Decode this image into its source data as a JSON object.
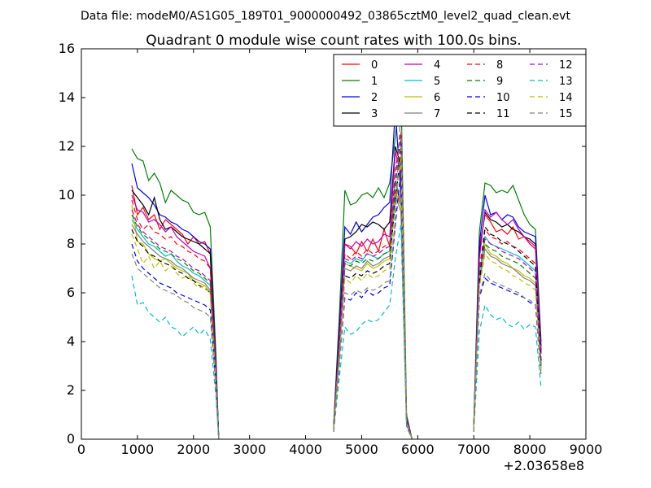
{
  "figure": {
    "suptitle": "Data file: modeM0/AS1G05_189T01_9000000492_03865cztM0_level2_quad_clean.evt",
    "title": "Quadrant 0 module wise count rates with 100.0s bins.",
    "x_offset_label": "+2.03658e8"
  },
  "chart_data": {
    "type": "line",
    "title": "Quadrant 0 module wise count rates with 100.0s bins.",
    "xlabel": "",
    "ylabel": "",
    "x_offset": "+2.03658e8",
    "xlim": [
      0,
      9000
    ],
    "ylim": [
      0,
      16
    ],
    "xticks": [
      0,
      1000,
      2000,
      3000,
      4000,
      5000,
      6000,
      7000,
      8000,
      9000
    ],
    "yticks": [
      0,
      2,
      4,
      6,
      8,
      10,
      12,
      14,
      16
    ],
    "grid": false,
    "legend": {
      "placement": "top-right",
      "columns": 4
    },
    "segments": [
      {
        "x": [
          900,
          1000,
          1100,
          1200,
          1300,
          1400,
          1500,
          1600,
          1700,
          1800,
          1900,
          2000,
          2100,
          2200,
          2300,
          2400,
          2450
        ]
      },
      {
        "x": [
          4500,
          4600,
          4700,
          4800,
          4900,
          5000,
          5100,
          5200,
          5300,
          5400,
          5500,
          5600,
          5700,
          5800,
          5900
        ]
      },
      {
        "x": [
          7000,
          7100,
          7200,
          7300,
          7400,
          7500,
          7600,
          7700,
          7800,
          7900,
          8000,
          8100,
          8200
        ]
      }
    ],
    "series": [
      {
        "name": "0",
        "color": "#ff0000",
        "dash": "solid",
        "segments": [
          [
            10.4,
            9.2,
            9.5,
            9.0,
            9.2,
            8.6,
            9.0,
            8.8,
            8.6,
            8.4,
            8.0,
            8.3,
            8.0,
            8.1,
            7.6,
            3.0,
            0
          ],
          [
            0.5,
            4.0,
            8.0,
            7.9,
            7.6,
            8.1,
            7.7,
            8.2,
            7.7,
            8.6,
            7.9,
            10.6,
            9.5,
            0.8,
            0
          ],
          [
            0.5,
            7.8,
            9.2,
            8.9,
            8.5,
            8.6,
            8.4,
            8.7,
            8.2,
            8.3,
            8.0,
            7.8,
            3.5
          ]
        ]
      },
      {
        "name": "1",
        "color": "#008000",
        "dash": "solid",
        "segments": [
          [
            11.9,
            11.5,
            11.4,
            10.6,
            10.9,
            10.5,
            9.7,
            10.2,
            10.0,
            9.8,
            9.7,
            9.3,
            9.2,
            9.3,
            8.7,
            3.5,
            0
          ],
          [
            0.6,
            5.0,
            10.2,
            9.6,
            9.7,
            10.0,
            10.1,
            9.9,
            10.3,
            9.9,
            10.5,
            12.4,
            14.6,
            1.0,
            0
          ],
          [
            0.6,
            8.5,
            10.5,
            10.4,
            10.1,
            10.2,
            10.1,
            10.4,
            9.8,
            9.2,
            8.8,
            8.6,
            4.0
          ]
        ]
      },
      {
        "name": "2",
        "color": "#0000ff",
        "dash": "solid",
        "segments": [
          [
            11.3,
            10.3,
            10.1,
            9.9,
            9.6,
            9.2,
            9.1,
            8.9,
            8.8,
            8.6,
            8.5,
            8.3,
            8.1,
            8.0,
            7.8,
            3.2,
            0
          ],
          [
            0.5,
            4.5,
            8.7,
            8.4,
            8.9,
            8.5,
            8.8,
            9.1,
            9.2,
            9.5,
            9.7,
            13.5,
            10.0,
            0.9,
            0
          ],
          [
            0.5,
            8.0,
            10.0,
            9.2,
            9.3,
            9.0,
            9.2,
            9.1,
            8.7,
            8.5,
            8.4,
            8.3,
            3.8
          ]
        ]
      },
      {
        "name": "3",
        "color": "#000000",
        "dash": "solid",
        "segments": [
          [
            10.2,
            9.9,
            9.6,
            9.2,
            9.9,
            9.0,
            8.6,
            8.7,
            8.5,
            8.3,
            8.2,
            8.1,
            8.0,
            7.8,
            7.6,
            3.0,
            0
          ],
          [
            0.5,
            4.2,
            8.2,
            8.3,
            8.5,
            8.8,
            8.7,
            8.9,
            8.8,
            8.6,
            8.9,
            12.0,
            11.2,
            0.8,
            0
          ],
          [
            0.5,
            7.6,
            9.3,
            9.0,
            8.9,
            8.7,
            8.8,
            8.6,
            8.5,
            8.3,
            8.2,
            8.0,
            3.6
          ]
        ]
      },
      {
        "name": "4",
        "color": "#bf00bf",
        "dash": "solid",
        "segments": [
          [
            10.0,
            9.4,
            9.3,
            8.9,
            9.0,
            8.8,
            8.5,
            8.7,
            8.3,
            8.1,
            7.9,
            7.7,
            7.6,
            7.5,
            7.0,
            2.9,
            0
          ],
          [
            0.5,
            4.0,
            8.0,
            7.8,
            8.1,
            7.9,
            8.2,
            8.0,
            8.1,
            8.4,
            8.3,
            11.8,
            10.8,
            0.8,
            0
          ],
          [
            0.5,
            7.4,
            9.4,
            9.1,
            9.3,
            9.0,
            8.8,
            9.0,
            8.6,
            8.3,
            8.1,
            7.9,
            3.5
          ]
        ]
      },
      {
        "name": "5",
        "color": "#00bfbf",
        "dash": "solid",
        "segments": [
          [
            9.0,
            8.6,
            8.3,
            8.0,
            7.9,
            7.7,
            7.5,
            7.6,
            7.3,
            7.1,
            7.0,
            6.8,
            6.7,
            6.5,
            6.3,
            2.6,
            0
          ],
          [
            0.4,
            3.6,
            7.3,
            7.2,
            7.4,
            7.3,
            7.6,
            7.5,
            7.4,
            7.6,
            7.7,
            10.6,
            9.8,
            0.7,
            0
          ],
          [
            0.4,
            6.8,
            8.3,
            8.0,
            7.9,
            7.8,
            7.7,
            7.6,
            7.5,
            7.3,
            7.1,
            6.9,
            3.1
          ]
        ]
      },
      {
        "name": "6",
        "color": "#bfbf00",
        "dash": "solid",
        "segments": [
          [
            9.6,
            8.1,
            8.0,
            7.6,
            7.4,
            7.3,
            7.4,
            7.2,
            7.0,
            6.9,
            6.8,
            6.5,
            6.4,
            6.3,
            6.0,
            2.5,
            0
          ],
          [
            0.4,
            3.5,
            7.2,
            7.1,
            7.0,
            6.9,
            7.2,
            7.0,
            7.1,
            7.3,
            7.4,
            10.2,
            9.5,
            0.7,
            0
          ],
          [
            0.4,
            6.5,
            8.0,
            7.6,
            7.5,
            7.3,
            7.2,
            7.0,
            6.9,
            6.7,
            6.6,
            6.4,
            3.0
          ]
        ]
      },
      {
        "name": "7",
        "color": "#808080",
        "dash": "solid",
        "segments": [
          [
            8.8,
            8.4,
            8.1,
            7.9,
            7.7,
            7.5,
            7.4,
            7.3,
            7.1,
            7.0,
            6.8,
            6.6,
            6.5,
            6.4,
            6.1,
            2.5,
            0
          ],
          [
            0.4,
            3.4,
            7.0,
            6.9,
            7.1,
            7.0,
            7.3,
            7.1,
            7.2,
            7.4,
            7.5,
            10.0,
            9.3,
            0.6,
            0
          ],
          [
            0.4,
            6.4,
            7.8,
            7.5,
            7.4,
            7.2,
            7.1,
            7.0,
            6.8,
            6.6,
            6.5,
            6.3,
            2.9
          ]
        ]
      },
      {
        "name": "8",
        "color": "#ff0000",
        "dash": "dashed",
        "segments": [
          [
            9.8,
            9.0,
            8.6,
            8.8,
            8.5,
            8.4,
            8.2,
            8.3,
            8.0,
            7.9,
            7.7,
            7.6,
            7.4,
            7.3,
            7.0,
            2.8,
            0
          ],
          [
            0.4,
            3.8,
            7.6,
            7.4,
            7.7,
            7.5,
            7.8,
            7.6,
            7.7,
            7.9,
            8.0,
            11.0,
            12.6,
            0.8,
            0
          ],
          [
            0.4,
            7.0,
            8.6,
            8.3,
            8.2,
            8.0,
            8.1,
            7.9,
            7.8,
            7.6,
            7.4,
            7.2,
            3.2
          ]
        ]
      },
      {
        "name": "9",
        "color": "#008000",
        "dash": "dashed",
        "segments": [
          [
            9.2,
            8.7,
            8.4,
            8.2,
            8.0,
            7.8,
            7.7,
            7.6,
            7.4,
            7.3,
            7.1,
            6.9,
            6.8,
            6.6,
            6.4,
            2.6,
            0
          ],
          [
            0.4,
            3.6,
            7.2,
            7.1,
            7.3,
            7.2,
            7.4,
            7.3,
            7.4,
            7.6,
            7.7,
            10.4,
            12.2,
            0.7,
            0
          ],
          [
            0.4,
            6.8,
            8.0,
            7.8,
            7.7,
            7.5,
            7.4,
            7.3,
            7.2,
            7.0,
            6.8,
            6.6,
            3.0
          ]
        ]
      },
      {
        "name": "10",
        "color": "#0000ff",
        "dash": "dashed",
        "segments": [
          [
            8.0,
            7.3,
            7.0,
            6.8,
            6.6,
            6.4,
            6.3,
            6.2,
            6.0,
            5.9,
            5.8,
            5.7,
            5.6,
            5.5,
            5.3,
            2.2,
            0
          ],
          [
            0.3,
            3.0,
            5.8,
            5.7,
            6.0,
            5.8,
            6.1,
            5.9,
            6.0,
            6.2,
            6.3,
            8.8,
            11.0,
            0.6,
            0
          ],
          [
            0.3,
            5.8,
            6.6,
            6.4,
            6.3,
            6.2,
            6.1,
            6.0,
            5.9,
            5.8,
            5.6,
            5.5,
            2.6
          ]
        ]
      },
      {
        "name": "11",
        "color": "#000000",
        "dash": "dashed",
        "segments": [
          [
            8.6,
            8.1,
            7.9,
            7.6,
            7.5,
            7.3,
            7.2,
            7.1,
            6.9,
            6.8,
            6.6,
            6.5,
            6.3,
            6.2,
            6.0,
            2.4,
            0
          ],
          [
            0.4,
            3.3,
            6.7,
            6.6,
            6.8,
            6.7,
            6.9,
            6.8,
            6.9,
            7.1,
            7.2,
            9.8,
            11.8,
            0.7,
            0
          ],
          [
            0.4,
            6.4,
            8.7,
            8.4,
            8.3,
            8.1,
            8.0,
            7.9,
            7.7,
            7.5,
            7.3,
            7.1,
            3.2
          ]
        ]
      },
      {
        "name": "12",
        "color": "#bf00bf",
        "dash": "dashed",
        "segments": [
          [
            9.4,
            8.8,
            8.5,
            8.3,
            8.1,
            7.9,
            7.8,
            7.7,
            7.5,
            7.4,
            7.2,
            7.0,
            6.9,
            6.7,
            6.5,
            2.7,
            0
          ],
          [
            0.4,
            3.7,
            7.4,
            7.3,
            7.5,
            7.4,
            7.6,
            7.5,
            7.6,
            7.8,
            7.9,
            10.8,
            12.4,
            0.8,
            0
          ],
          [
            0.4,
            6.9,
            8.2,
            8.0,
            7.9,
            7.7,
            7.6,
            7.5,
            7.4,
            7.2,
            7.0,
            6.8,
            3.1
          ]
        ]
      },
      {
        "name": "13",
        "color": "#00bfbf",
        "dash": "dashed",
        "segments": [
          [
            6.7,
            5.5,
            5.6,
            5.2,
            5.0,
            4.8,
            5.0,
            4.6,
            4.5,
            4.2,
            4.4,
            4.6,
            4.3,
            4.5,
            4.1,
            1.8,
            0
          ],
          [
            0.3,
            2.5,
            4.6,
            4.3,
            4.4,
            4.7,
            4.9,
            4.8,
            4.9,
            5.2,
            5.5,
            7.4,
            8.8,
            0.5,
            0
          ],
          [
            0.3,
            4.4,
            5.5,
            5.1,
            4.9,
            5.0,
            4.7,
            4.6,
            4.8,
            4.5,
            4.7,
            4.6,
            2.1
          ]
        ]
      },
      {
        "name": "14",
        "color": "#bfbf00",
        "dash": "dashed",
        "segments": [
          [
            8.4,
            7.8,
            7.2,
            7.5,
            7.0,
            7.3,
            6.9,
            7.1,
            6.8,
            6.6,
            6.7,
            6.4,
            6.2,
            6.3,
            5.9,
            2.4,
            0
          ],
          [
            0.4,
            3.3,
            6.6,
            6.4,
            6.7,
            6.5,
            6.8,
            6.6,
            6.7,
            6.9,
            7.0,
            9.6,
            11.6,
            0.7,
            0
          ],
          [
            0.4,
            6.2,
            7.6,
            7.3,
            7.2,
            7.0,
            6.9,
            6.7,
            6.6,
            6.4,
            6.3,
            6.1,
            2.8
          ]
        ]
      },
      {
        "name": "15",
        "color": "#808080",
        "dash": "dashed",
        "segments": [
          [
            7.6,
            7.0,
            6.8,
            6.6,
            6.4,
            6.2,
            6.1,
            6.0,
            5.9,
            5.7,
            5.6,
            5.4,
            5.3,
            5.2,
            5.0,
            2.1,
            0
          ],
          [
            0.3,
            3.0,
            6.0,
            5.9,
            6.1,
            6.0,
            6.2,
            6.1,
            6.2,
            6.4,
            6.5,
            9.0,
            13.8,
            0.6,
            0
          ],
          [
            0.3,
            5.9,
            6.8,
            6.5,
            6.4,
            6.3,
            6.2,
            6.1,
            6.0,
            5.8,
            5.7,
            5.5,
            2.6
          ]
        ]
      }
    ]
  }
}
